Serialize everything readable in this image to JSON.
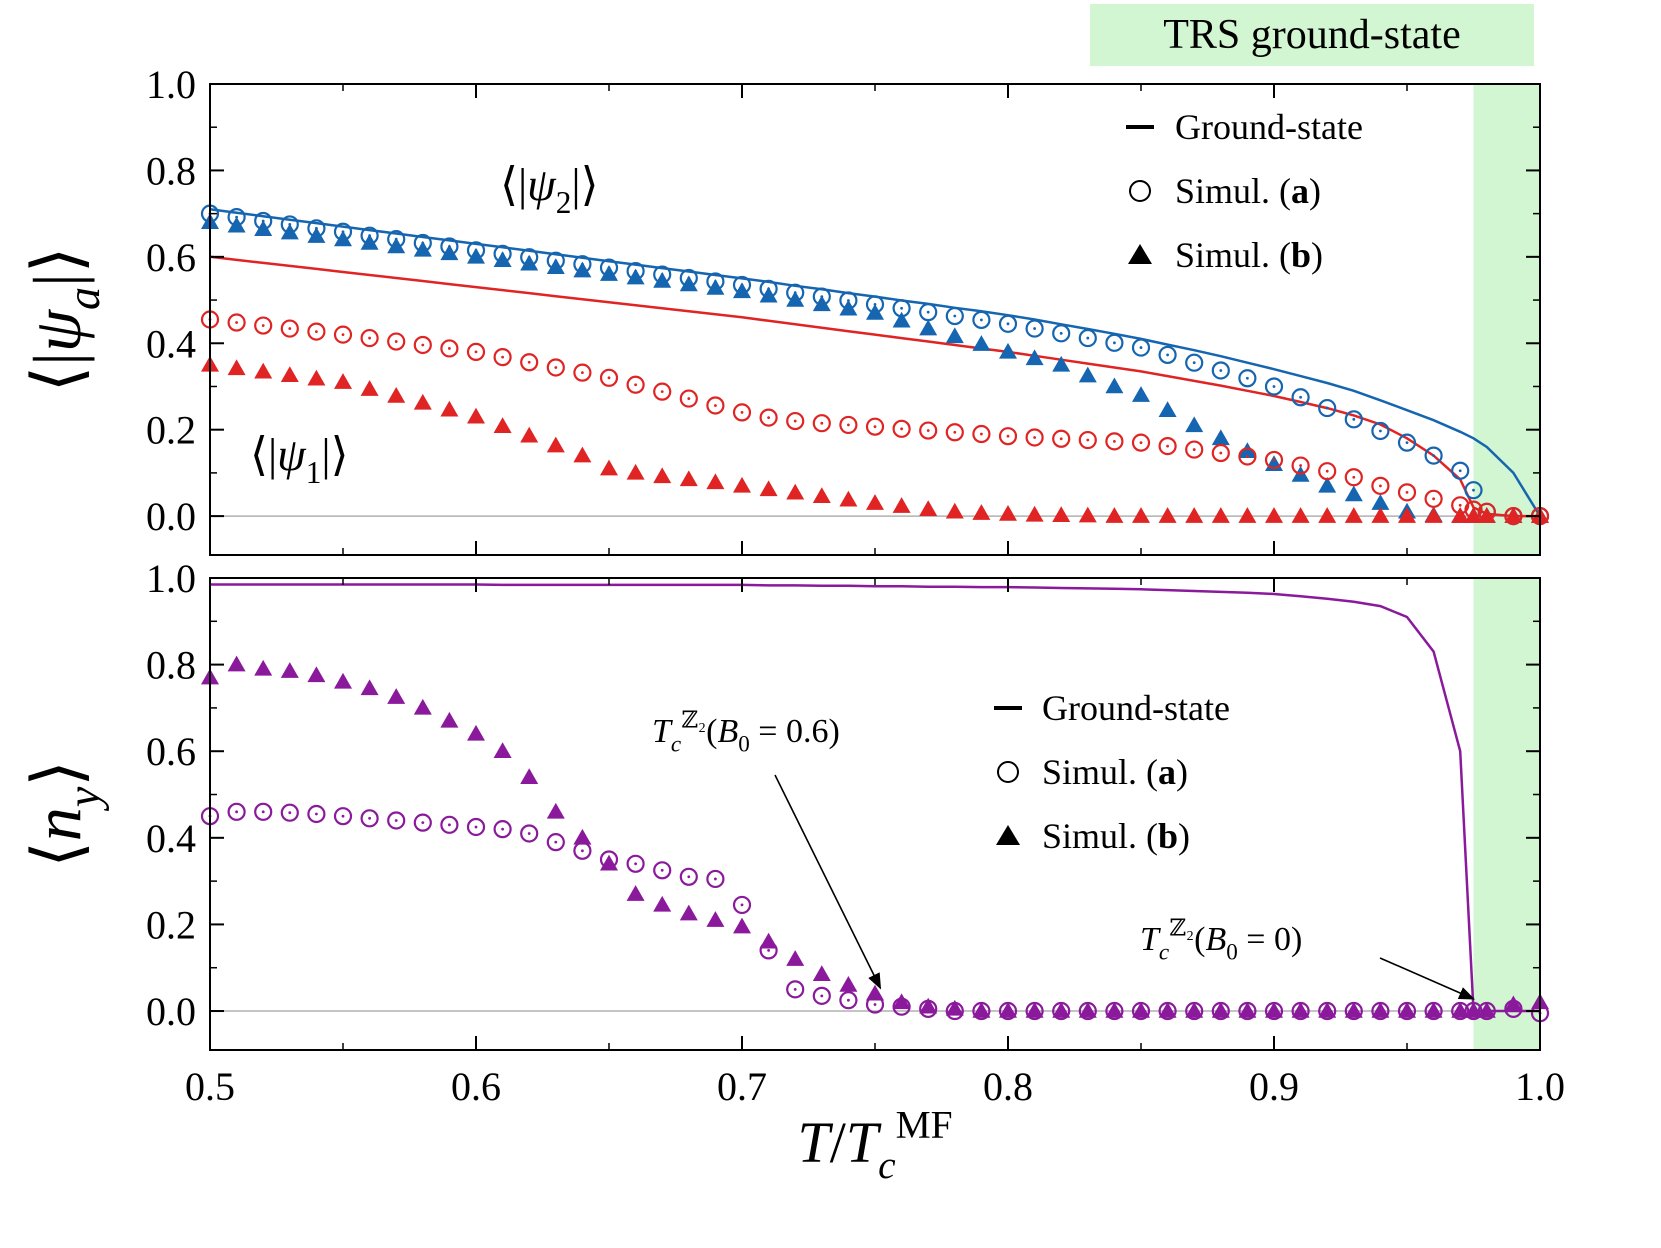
{
  "header": "TRS ground-state",
  "header_color": "#d2f5d2",
  "chart_data": [
    {
      "type": "line",
      "x": [
        0.5,
        0.51,
        0.52,
        0.53,
        0.54,
        0.55,
        0.56,
        0.57,
        0.58,
        0.59,
        0.6,
        0.61,
        0.62,
        0.63,
        0.64,
        0.65,
        0.66,
        0.67,
        0.68,
        0.69,
        0.7,
        0.71,
        0.72,
        0.73,
        0.74,
        0.75,
        0.76,
        0.77,
        0.78,
        0.79,
        0.8,
        0.81,
        0.82,
        0.83,
        0.84,
        0.85,
        0.86,
        0.87,
        0.88,
        0.89,
        0.9,
        0.91,
        0.92,
        0.93,
        0.94,
        0.95,
        0.96,
        0.97,
        0.975,
        0.98,
        0.99,
        1
      ],
      "xlim": [
        0.5,
        1
      ],
      "ylim": [
        -0.09,
        1
      ],
      "xticks": [
        0.5,
        0.6,
        0.7,
        0.8,
        0.9,
        1
      ],
      "show_xticklabels": false,
      "xminorticks": [
        0.55,
        0.65,
        0.75,
        0.85,
        0.95
      ],
      "yticks": [
        {
          "value": 0,
          "label": "0.0"
        },
        0.2,
        0.4,
        0.6,
        0.8,
        {
          "value": 1,
          "label": "1.0"
        }
      ],
      "yminorticks": [
        0.1,
        0.3,
        0.5,
        0.7,
        0.9
      ],
      "zero_line": true,
      "shade": {
        "xlim": [
          0.975,
          1
        ],
        "color": "#d2f5d2"
      },
      "ylabel": [
        {
          "text": "⟨|"
        },
        {
          "text": "ψ",
          "italic": true
        },
        {
          "text": "a",
          "italic": true,
          "pos": "sub"
        },
        {
          "text": "|⟩"
        }
      ],
      "labels": [
        {
          "color": "#1565b0",
          "text": [
            {
              "text": "⟨|"
            },
            {
              "text": "ψ",
              "italic": true
            },
            {
              "text": "2",
              "pos": "sub"
            },
            {
              "text": "|⟩"
            }
          ]
        },
        {
          "color": "#e02424",
          "text": [
            {
              "text": "⟨|"
            },
            {
              "text": "ψ",
              "italic": true
            },
            {
              "text": "1",
              "pos": "sub"
            },
            {
              "text": "|⟩"
            }
          ]
        }
      ],
      "legend": [
        {
          "marker": "line",
          "text": [
            {
              "text": "Ground-state"
            }
          ]
        },
        {
          "marker": "circle",
          "text": [
            {
              "text": "Simul. ("
            },
            {
              "text": "a",
              "bold": true
            },
            {
              "text": ")"
            }
          ]
        },
        {
          "marker": "triangle",
          "text": [
            {
              "text": "Simul. ("
            },
            {
              "text": "b",
              "bold": true
            },
            {
              "text": ")"
            }
          ]
        }
      ],
      "series": [
        {
          "marker": "line",
          "color": "#1565b0",
          "values": [
            0.71,
            0.702,
            0.694,
            0.686,
            0.678,
            0.67,
            0.662,
            0.654,
            0.646,
            0.638,
            0.63,
            0.622,
            0.614,
            0.606,
            0.598,
            0.59,
            0.582,
            0.574,
            0.566,
            0.558,
            0.55,
            0.542,
            0.533,
            0.525,
            0.516,
            0.508,
            0.499,
            0.491,
            0.482,
            0.474,
            0.465,
            0.455,
            0.444,
            0.433,
            0.422,
            0.41,
            0.397,
            0.384,
            0.37,
            0.355,
            0.34,
            0.324,
            0.308,
            0.29,
            0.268,
            0.245,
            0.222,
            0.195,
            0.18,
            0.16,
            0.1,
            0
          ]
        },
        {
          "marker": "line",
          "color": "#e02424",
          "values": [
            0.6,
            0.593,
            0.586,
            0.579,
            0.572,
            0.565,
            0.558,
            0.551,
            0.544,
            0.537,
            0.53,
            0.523,
            0.516,
            0.509,
            0.502,
            0.495,
            0.488,
            0.481,
            0.474,
            0.467,
            0.46,
            0.452,
            0.444,
            0.436,
            0.428,
            0.42,
            0.412,
            0.404,
            0.396,
            0.388,
            0.38,
            0.371,
            0.362,
            0.353,
            0.344,
            0.335,
            0.324,
            0.313,
            0.302,
            0.29,
            0.278,
            0.264,
            0.25,
            0.233,
            0.212,
            0.18,
            0.14,
            0.085,
            0.02,
            0.005,
            0,
            0
          ]
        },
        {
          "marker": "circle",
          "color": "#1565b0",
          "values": [
            0.7,
            0.692,
            0.683,
            0.675,
            0.666,
            0.658,
            0.649,
            0.641,
            0.632,
            0.624,
            0.615,
            0.607,
            0.599,
            0.591,
            0.583,
            0.575,
            0.567,
            0.559,
            0.551,
            0.543,
            0.535,
            0.526,
            0.517,
            0.508,
            0.499,
            0.49,
            0.481,
            0.472,
            0.463,
            0.454,
            0.445,
            0.434,
            0.423,
            0.412,
            0.401,
            0.39,
            0.373,
            0.355,
            0.337,
            0.319,
            0.3,
            0.275,
            0.25,
            0.224,
            0.197,
            0.17,
            0.14,
            0.105,
            0.06,
            0.01,
            0,
            0
          ]
        },
        {
          "marker": "triangle",
          "color": "#1565b0",
          "values": [
            0.68,
            0.672,
            0.664,
            0.656,
            0.648,
            0.64,
            0.632,
            0.624,
            0.616,
            0.608,
            0.6,
            0.592,
            0.584,
            0.576,
            0.568,
            0.56,
            0.552,
            0.544,
            0.536,
            0.528,
            0.52,
            0.51,
            0.5,
            0.49,
            0.48,
            0.47,
            0.452,
            0.434,
            0.416,
            0.398,
            0.38,
            0.365,
            0.35,
            0.325,
            0.3,
            0.28,
            0.245,
            0.21,
            0.18,
            0.15,
            0.12,
            0.095,
            0.07,
            0.05,
            0.03,
            0.01,
            0.002,
            0,
            0,
            0,
            0,
            0
          ]
        },
        {
          "marker": "circle",
          "color": "#e02424",
          "values": [
            0.455,
            0.448,
            0.441,
            0.434,
            0.427,
            0.42,
            0.412,
            0.404,
            0.396,
            0.388,
            0.38,
            0.368,
            0.356,
            0.344,
            0.332,
            0.32,
            0.304,
            0.288,
            0.272,
            0.256,
            0.24,
            0.228,
            0.22,
            0.215,
            0.211,
            0.207,
            0.202,
            0.198,
            0.194,
            0.19,
            0.185,
            0.182,
            0.179,
            0.176,
            0.173,
            0.17,
            0.162,
            0.154,
            0.146,
            0.138,
            0.13,
            0.117,
            0.104,
            0.09,
            0.07,
            0.055,
            0.04,
            0.025,
            0.015,
            0.01,
            0,
            0
          ]
        },
        {
          "marker": "triangle",
          "color": "#e02424",
          "values": [
            0.35,
            0.342,
            0.334,
            0.326,
            0.318,
            0.31,
            0.294,
            0.278,
            0.262,
            0.246,
            0.23,
            0.208,
            0.186,
            0.163,
            0.14,
            0.11,
            0.1,
            0.092,
            0.085,
            0.078,
            0.07,
            0.062,
            0.054,
            0.046,
            0.038,
            0.03,
            0.023,
            0.016,
            0.01,
            0.007,
            0.005,
            0.003,
            0.002,
            0.001,
            0,
            0,
            0,
            0,
            0,
            0,
            0,
            0,
            0,
            0,
            0,
            0,
            0,
            0,
            0,
            0,
            0,
            0
          ]
        }
      ]
    },
    {
      "type": "line",
      "x": [
        0.5,
        0.51,
        0.52,
        0.53,
        0.54,
        0.55,
        0.56,
        0.57,
        0.58,
        0.59,
        0.6,
        0.61,
        0.62,
        0.63,
        0.64,
        0.65,
        0.66,
        0.67,
        0.68,
        0.69,
        0.7,
        0.71,
        0.72,
        0.73,
        0.74,
        0.75,
        0.76,
        0.77,
        0.78,
        0.79,
        0.8,
        0.81,
        0.82,
        0.83,
        0.84,
        0.85,
        0.86,
        0.87,
        0.88,
        0.89,
        0.9,
        0.91,
        0.92,
        0.93,
        0.94,
        0.95,
        0.96,
        0.97,
        0.975,
        0.98,
        0.99,
        1
      ],
      "xlim": [
        0.5,
        1
      ],
      "ylim": [
        -0.09,
        1
      ],
      "xticks": [
        {
          "value": 0.5,
          "label": "0.5"
        },
        {
          "value": 0.6,
          "label": "0.6"
        },
        {
          "value": 0.7,
          "label": "0.7"
        },
        {
          "value": 0.8,
          "label": "0.8"
        },
        {
          "value": 0.9,
          "label": "0.9"
        },
        {
          "value": 1,
          "label": "1.0"
        }
      ],
      "show_xticklabels": true,
      "xminorticks": [
        0.55,
        0.65,
        0.75,
        0.85,
        0.95
      ],
      "yticks": [
        {
          "value": 0,
          "label": "0.0"
        },
        0.2,
        0.4,
        0.6,
        0.8,
        {
          "value": 1,
          "label": "1.0"
        }
      ],
      "yminorticks": [
        0.1,
        0.3,
        0.5,
        0.7,
        0.9
      ],
      "zero_line": true,
      "shade": {
        "xlim": [
          0.975,
          1
        ],
        "color": "#d2f5d2"
      },
      "ylabel": [
        {
          "text": "⟨"
        },
        {
          "text": "n",
          "italic": true
        },
        {
          "text": "y",
          "italic": true,
          "pos": "sub"
        },
        {
          "text": "⟩"
        }
      ],
      "ylabel_color": "#8a1a9b",
      "xlabel": [
        {
          "text": "T",
          "italic": true
        },
        {
          "text": "/"
        },
        {
          "text": "T",
          "italic": true
        },
        {
          "text": "c",
          "italic": true,
          "pos": "sub"
        },
        {
          "text": "MF",
          "pos": "sup"
        }
      ],
      "legend": [
        {
          "marker": "line",
          "text": [
            {
              "text": "Ground-state"
            }
          ]
        },
        {
          "marker": "circle",
          "text": [
            {
              "text": "Simul. ("
            },
            {
              "text": "a",
              "bold": true
            },
            {
              "text": ")"
            }
          ]
        },
        {
          "marker": "triangle",
          "text": [
            {
              "text": "Simul. ("
            },
            {
              "text": "b",
              "bold": true
            },
            {
              "text": ")"
            }
          ]
        }
      ],
      "annotations": [
        {
          "xy": [
            0.752,
            0.03
          ],
          "text": [
            {
              "text": "T",
              "italic": true
            },
            {
              "text": "c",
              "italic": true,
              "pos": "sub"
            },
            {
              "text": "ℤ₂",
              "pos": "sup"
            },
            {
              "text": "("
            },
            {
              "text": "B",
              "italic": true
            },
            {
              "text": "0",
              "pos": "sub"
            },
            {
              "text": " = 0.6)"
            }
          ]
        },
        {
          "xy": [
            0.975,
            0.005
          ],
          "text": [
            {
              "text": "T",
              "italic": true
            },
            {
              "text": "c",
              "italic": true,
              "pos": "sub"
            },
            {
              "text": "ℤ₂",
              "pos": "sup"
            },
            {
              "text": "("
            },
            {
              "text": "B",
              "italic": true
            },
            {
              "text": "0",
              "pos": "sub"
            },
            {
              "text": " = 0)"
            }
          ]
        }
      ],
      "series": [
        {
          "marker": "line",
          "color": "#8a1a9b",
          "values": [
            0.985,
            0.985,
            0.985,
            0.985,
            0.985,
            0.985,
            0.985,
            0.985,
            0.985,
            0.985,
            0.985,
            0.984,
            0.984,
            0.984,
            0.984,
            0.984,
            0.984,
            0.984,
            0.984,
            0.984,
            0.984,
            0.983,
            0.983,
            0.982,
            0.982,
            0.981,
            0.981,
            0.98,
            0.98,
            0.979,
            0.979,
            0.978,
            0.977,
            0.976,
            0.975,
            0.974,
            0.972,
            0.97,
            0.968,
            0.966,
            0.963,
            0.958,
            0.952,
            0.945,
            0.935,
            0.91,
            0.83,
            0.6,
            0,
            0,
            0,
            0
          ]
        },
        {
          "marker": "circle",
          "color": "#8a1a9b",
          "values": [
            0.45,
            0.46,
            0.46,
            0.458,
            0.455,
            0.45,
            0.445,
            0.44,
            0.435,
            0.43,
            0.425,
            0.42,
            0.41,
            0.39,
            0.37,
            0.35,
            0.34,
            0.325,
            0.31,
            0.305,
            0.245,
            0.14,
            0.05,
            0.035,
            0.025,
            0.015,
            0.01,
            0.005,
            0,
            0,
            0,
            0,
            0,
            0,
            0,
            0,
            0,
            0,
            0,
            0,
            0,
            0,
            0,
            0,
            0,
            0,
            0,
            0,
            0,
            0,
            0.005,
            -0.005
          ]
        },
        {
          "marker": "triangle",
          "color": "#8a1a9b",
          "values": [
            0.77,
            0.8,
            0.79,
            0.785,
            0.775,
            0.76,
            0.745,
            0.725,
            0.7,
            0.67,
            0.64,
            0.6,
            0.54,
            0.46,
            0.4,
            0.34,
            0.27,
            0.245,
            0.225,
            0.21,
            0.195,
            0.16,
            0.12,
            0.085,
            0.06,
            0.04,
            0.02,
            0.01,
            0.005,
            0,
            0,
            0,
            0,
            0,
            0,
            0,
            0,
            0,
            0,
            0,
            0,
            0,
            0,
            0,
            0,
            0,
            0,
            0,
            0,
            0,
            0.015,
            0.02
          ]
        }
      ]
    }
  ]
}
